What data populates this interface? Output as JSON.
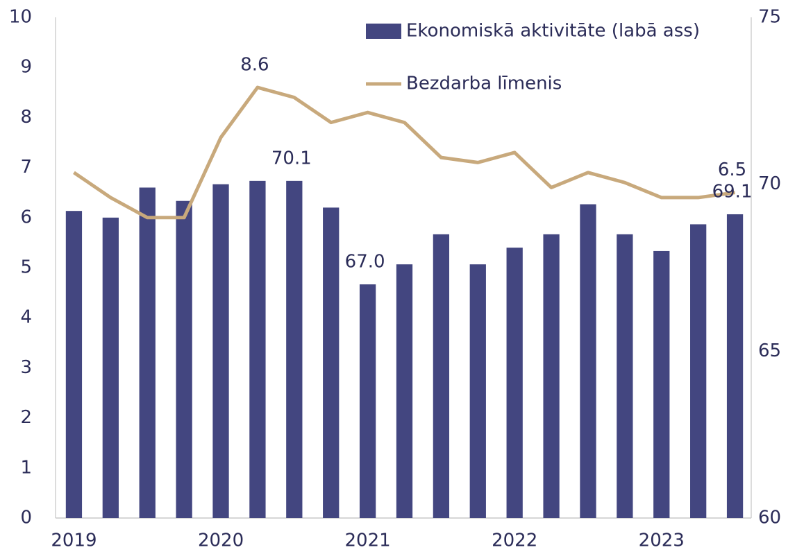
{
  "chart_data": {
    "type": "bar_line",
    "categories": [
      "2019",
      null,
      null,
      null,
      "2020",
      null,
      null,
      null,
      "2021",
      null,
      null,
      null,
      "2022",
      null,
      null,
      null,
      "2023",
      null,
      null
    ],
    "series": [
      {
        "name": "Ekonomiskā aktivitāte (labā ass)",
        "type": "bar",
        "axis": "y2",
        "color": "#434680",
        "values": [
          69.2,
          69.0,
          69.9,
          69.5,
          70.0,
          70.1,
          70.1,
          69.3,
          67.0,
          67.6,
          68.5,
          67.6,
          68.1,
          68.5,
          69.4,
          68.5,
          68.0,
          68.8,
          69.1
        ],
        "value_labels": [
          null,
          null,
          null,
          null,
          null,
          null,
          "70.1",
          null,
          "67.0",
          null,
          null,
          null,
          null,
          null,
          null,
          null,
          null,
          null,
          "69.1"
        ]
      },
      {
        "name": "Bezdarba līmenis",
        "type": "line",
        "axis": "y",
        "color": "#c8a97c",
        "values": [
          6.9,
          6.4,
          6.0,
          6.0,
          7.6,
          8.6,
          8.4,
          7.9,
          8.1,
          7.9,
          7.2,
          7.1,
          7.3,
          6.6,
          6.9,
          6.7,
          6.4,
          6.4,
          6.5
        ],
        "value_labels": [
          null,
          null,
          null,
          null,
          null,
          "8.6",
          null,
          null,
          null,
          null,
          null,
          null,
          null,
          null,
          null,
          null,
          null,
          null,
          "6.5"
        ]
      }
    ],
    "ylim": [
      0,
      10
    ],
    "yticks": [
      0,
      1,
      2,
      3,
      4,
      5,
      6,
      7,
      8,
      9,
      10
    ],
    "y2lim": [
      60,
      75
    ],
    "y2ticks": [
      60,
      65,
      70,
      75
    ],
    "legend": "top-right"
  }
}
